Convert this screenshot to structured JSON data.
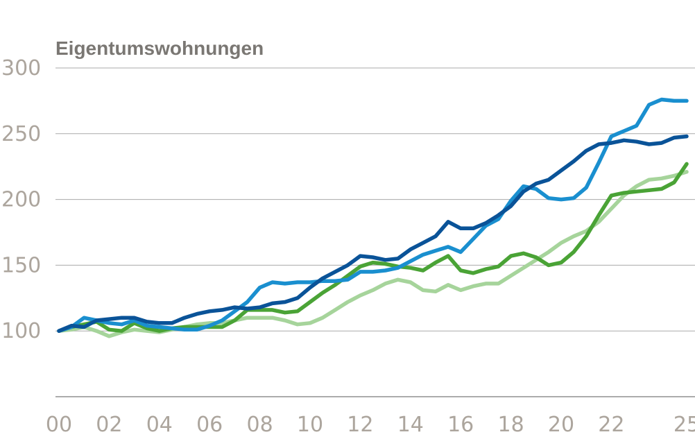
{
  "chart_data": {
    "type": "line",
    "title": "Eigentumswohnungen",
    "xlabel": "",
    "ylabel": "",
    "ylim": [
      50,
      300
    ],
    "xlim": [
      2000,
      2025.4
    ],
    "yticks": [
      100,
      150,
      200,
      250,
      300
    ],
    "xtick_labels": [
      {
        "x": 2000,
        "label": "00"
      },
      {
        "x": 2002,
        "label": "02"
      },
      {
        "x": 2004,
        "label": "04"
      },
      {
        "x": 2006,
        "label": "06"
      },
      {
        "x": 2008,
        "label": "08"
      },
      {
        "x": 2010,
        "label": "10"
      },
      {
        "x": 2012,
        "label": "12"
      },
      {
        "x": 2014,
        "label": "14"
      },
      {
        "x": 2016,
        "label": "16"
      },
      {
        "x": 2018,
        "label": "18"
      },
      {
        "x": 2020,
        "label": "20"
      },
      {
        "x": 2022,
        "label": "22"
      },
      {
        "x": 2025,
        "label": "25"
      }
    ],
    "grid": true,
    "series": [
      {
        "name": "light green",
        "color": "#a6d49b",
        "x": [
          2000,
          2000.5,
          2001,
          2001.5,
          2002,
          2002.5,
          2003,
          2003.5,
          2004,
          2004.5,
          2005,
          2005.5,
          2006,
          2006.5,
          2007,
          2007.5,
          2008,
          2008.5,
          2009,
          2009.5,
          2010,
          2010.5,
          2011,
          2011.5,
          2012,
          2012.5,
          2013,
          2013.5,
          2014,
          2014.5,
          2015,
          2015.5,
          2016,
          2016.5,
          2017,
          2017.5,
          2018,
          2018.5,
          2019,
          2019.5,
          2020,
          2020.5,
          2021,
          2021.5,
          2022,
          2022.5,
          2023,
          2023.5,
          2024,
          2024.5,
          2025
        ],
        "values": [
          100,
          101,
          103,
          100,
          96,
          99,
          101,
          100,
          99,
          101,
          103,
          105,
          106,
          106,
          108,
          110,
          110,
          110,
          108,
          105,
          106,
          110,
          116,
          122,
          127,
          131,
          136,
          139,
          137,
          131,
          130,
          135,
          131,
          134,
          136,
          136,
          142,
          148,
          154,
          160,
          167,
          172,
          176,
          183,
          193,
          203,
          210,
          215,
          216,
          218,
          221
        ]
      },
      {
        "name": "green",
        "color": "#4aa336",
        "x": [
          2000,
          2000.5,
          2001,
          2001.5,
          2002,
          2002.5,
          2003,
          2003.5,
          2004,
          2004.5,
          2005,
          2005.5,
          2006,
          2006.5,
          2007,
          2007.5,
          2008,
          2008.5,
          2009,
          2009.5,
          2010,
          2010.5,
          2011,
          2011.5,
          2012,
          2012.5,
          2013,
          2013.5,
          2014,
          2014.5,
          2015,
          2015.5,
          2016,
          2016.5,
          2017,
          2017.5,
          2018,
          2018.5,
          2019,
          2019.5,
          2020,
          2020.5,
          2021,
          2021.5,
          2022,
          2022.5,
          2023,
          2023.5,
          2024,
          2024.5,
          2025
        ],
        "values": [
          100,
          103,
          105,
          107,
          101,
          100,
          106,
          102,
          100,
          102,
          103,
          103,
          103,
          103,
          108,
          116,
          116,
          116,
          114,
          115,
          122,
          129,
          135,
          142,
          149,
          152,
          151,
          149,
          148,
          146,
          152,
          157,
          146,
          144,
          147,
          149,
          157,
          159,
          156,
          150,
          152,
          160,
          172,
          188,
          203,
          205,
          206,
          207,
          208,
          213,
          227
        ]
      },
      {
        "name": "light blue",
        "color": "#1a8fcf",
        "x": [
          2000,
          2000.5,
          2001,
          2001.5,
          2002,
          2002.5,
          2003,
          2003.5,
          2004,
          2004.5,
          2005,
          2005.5,
          2006,
          2006.5,
          2007,
          2007.5,
          2008,
          2008.5,
          2009,
          2009.5,
          2010,
          2010.5,
          2011,
          2011.5,
          2012,
          2012.5,
          2013,
          2013.5,
          2014,
          2014.5,
          2015,
          2015.5,
          2016,
          2016.5,
          2017,
          2017.5,
          2018,
          2018.5,
          2019,
          2019.5,
          2020,
          2020.5,
          2021,
          2021.5,
          2022,
          2022.5,
          2023,
          2023.5,
          2024,
          2024.5,
          2025
        ],
        "values": [
          100,
          103,
          110,
          108,
          106,
          105,
          108,
          104,
          103,
          102,
          101,
          101,
          104,
          108,
          115,
          122,
          133,
          137,
          136,
          137,
          137,
          138,
          138,
          139,
          145,
          145,
          146,
          148,
          153,
          158,
          161,
          164,
          160,
          170,
          180,
          185,
          199,
          210,
          208,
          201,
          200,
          201,
          209,
          228,
          248,
          252,
          256,
          272,
          276,
          275,
          275
        ]
      },
      {
        "name": "dark blue",
        "color": "#0a5398",
        "x": [
          2000,
          2000.5,
          2001,
          2001.5,
          2002,
          2002.5,
          2003,
          2003.5,
          2004,
          2004.5,
          2005,
          2005.5,
          2006,
          2006.5,
          2007,
          2007.5,
          2008,
          2008.5,
          2009,
          2009.5,
          2010,
          2010.5,
          2011,
          2011.5,
          2012,
          2012.5,
          2013,
          2013.5,
          2014,
          2014.5,
          2015,
          2015.5,
          2016,
          2016.5,
          2017,
          2017.5,
          2018,
          2018.5,
          2019,
          2019.5,
          2020,
          2020.5,
          2021,
          2021.5,
          2022,
          2022.5,
          2023,
          2023.5,
          2024,
          2024.5,
          2025
        ],
        "values": [
          100,
          104,
          103,
          108,
          109,
          110,
          110,
          107,
          106,
          106,
          110,
          113,
          115,
          116,
          118,
          117,
          118,
          121,
          122,
          125,
          133,
          140,
          145,
          150,
          157,
          156,
          154,
          155,
          162,
          167,
          172,
          183,
          178,
          178,
          182,
          188,
          195,
          206,
          212,
          215,
          222,
          229,
          237,
          242,
          243,
          245,
          244,
          242,
          243,
          247,
          248
        ]
      }
    ]
  }
}
